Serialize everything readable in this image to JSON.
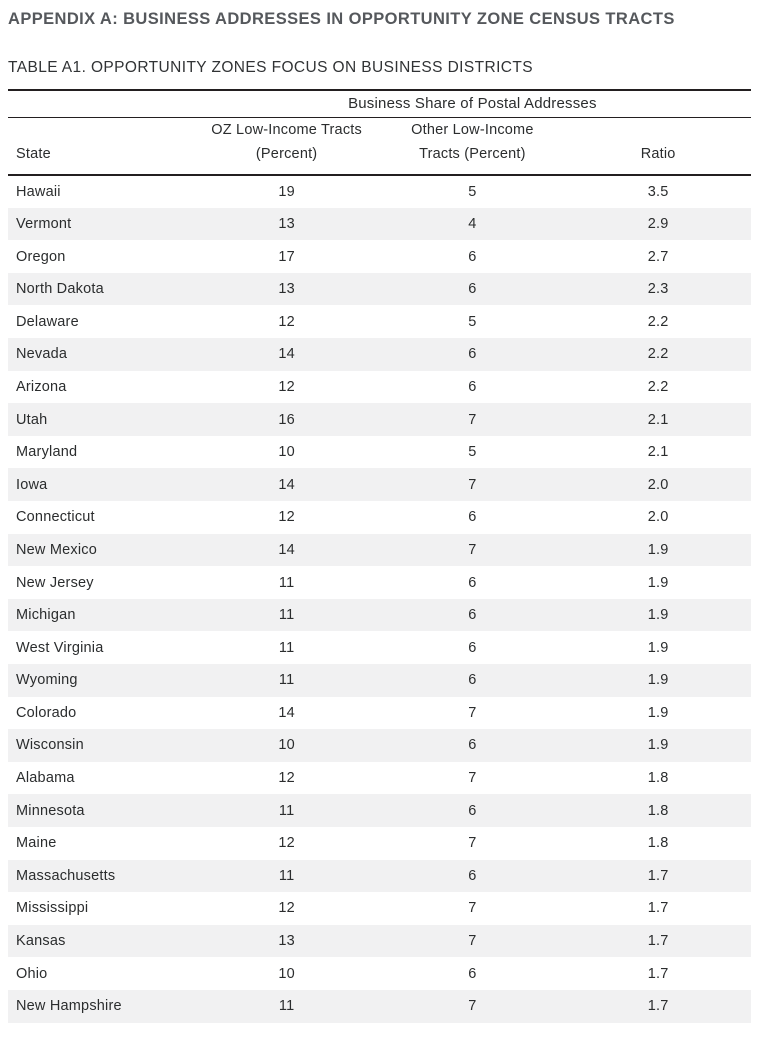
{
  "document": {
    "appendix_heading": "APPENDIX A: BUSINESS ADDRESSES IN OPPORTUNITY ZONE CENSUS TRACTS",
    "table_heading": "TABLE A1. OPPORTUNITY ZONES FOCUS ON BUSINESS DISTRICTS"
  },
  "table": {
    "span_header": "Business Share of Postal Addresses",
    "col_state": "State",
    "col_oz_line1": "OZ Low-Income Tracts",
    "col_oz_line2": "(Percent)",
    "col_other_line1": "Other Low-Income",
    "col_other_line2": "Tracts (Percent)",
    "col_ratio": "Ratio",
    "rows": [
      {
        "state": "Hawaii",
        "oz": "19",
        "other": "5",
        "ratio": "3.5"
      },
      {
        "state": "Vermont",
        "oz": "13",
        "other": "4",
        "ratio": "2.9"
      },
      {
        "state": "Oregon",
        "oz": "17",
        "other": "6",
        "ratio": "2.7"
      },
      {
        "state": "North Dakota",
        "oz": "13",
        "other": "6",
        "ratio": "2.3"
      },
      {
        "state": "Delaware",
        "oz": "12",
        "other": "5",
        "ratio": "2.2"
      },
      {
        "state": "Nevada",
        "oz": "14",
        "other": "6",
        "ratio": "2.2"
      },
      {
        "state": "Arizona",
        "oz": "12",
        "other": "6",
        "ratio": "2.2"
      },
      {
        "state": "Utah",
        "oz": "16",
        "other": "7",
        "ratio": "2.1"
      },
      {
        "state": "Maryland",
        "oz": "10",
        "other": "5",
        "ratio": "2.1"
      },
      {
        "state": "Iowa",
        "oz": "14",
        "other": "7",
        "ratio": "2.0"
      },
      {
        "state": "Connecticut",
        "oz": "12",
        "other": "6",
        "ratio": "2.0"
      },
      {
        "state": "New Mexico",
        "oz": "14",
        "other": "7",
        "ratio": "1.9"
      },
      {
        "state": "New Jersey",
        "oz": "11",
        "other": "6",
        "ratio": "1.9"
      },
      {
        "state": "Michigan",
        "oz": "11",
        "other": "6",
        "ratio": "1.9"
      },
      {
        "state": "West Virginia",
        "oz": "11",
        "other": "6",
        "ratio": "1.9"
      },
      {
        "state": "Wyoming",
        "oz": "11",
        "other": "6",
        "ratio": "1.9"
      },
      {
        "state": "Colorado",
        "oz": "14",
        "other": "7",
        "ratio": "1.9"
      },
      {
        "state": "Wisconsin",
        "oz": "10",
        "other": "6",
        "ratio": "1.9"
      },
      {
        "state": "Alabama",
        "oz": "12",
        "other": "7",
        "ratio": "1.8"
      },
      {
        "state": "Minnesota",
        "oz": "11",
        "other": "6",
        "ratio": "1.8"
      },
      {
        "state": "Maine",
        "oz": "12",
        "other": "7",
        "ratio": "1.8"
      },
      {
        "state": "Massachusetts",
        "oz": "11",
        "other": "6",
        "ratio": "1.7"
      },
      {
        "state": "Mississippi",
        "oz": "12",
        "other": "7",
        "ratio": "1.7"
      },
      {
        "state": "Kansas",
        "oz": "13",
        "other": "7",
        "ratio": "1.7"
      },
      {
        "state": "Ohio",
        "oz": "10",
        "other": "6",
        "ratio": "1.7"
      },
      {
        "state": "New Hampshire",
        "oz": "11",
        "other": "7",
        "ratio": "1.7"
      }
    ]
  },
  "colors": {
    "heading_gray": "#55585c",
    "text_dark": "#2b2d2e",
    "row_stripe": "#f1f1f2",
    "rule_dark": "#231f20",
    "background": "#ffffff"
  }
}
